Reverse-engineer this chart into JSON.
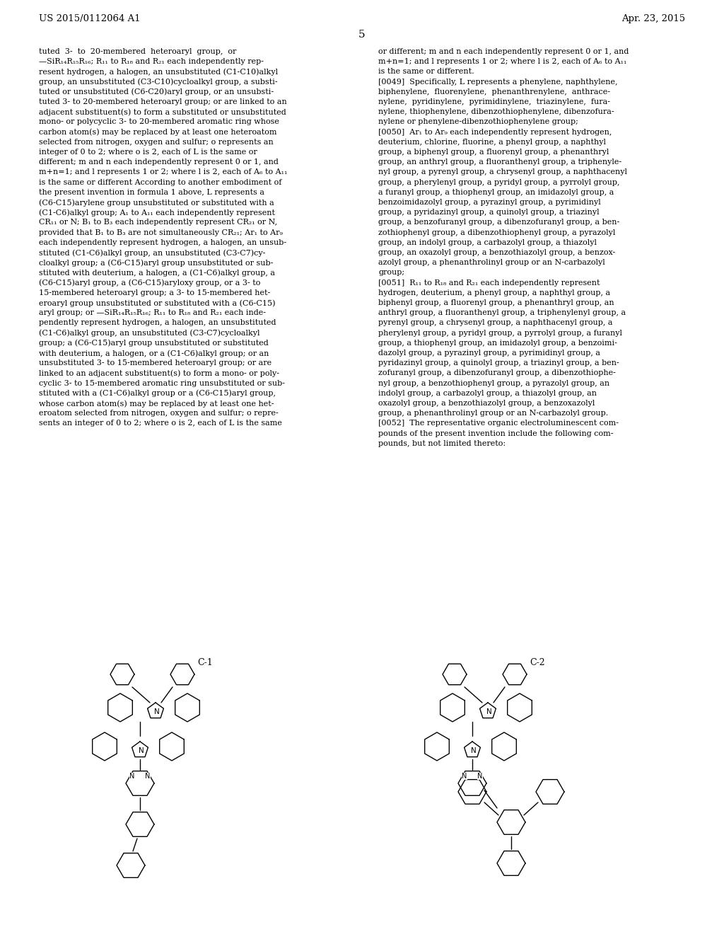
{
  "page_number": "5",
  "header_left": "US 2015/0112064 A1",
  "header_right": "Apr. 23, 2015",
  "background_color": "#ffffff",
  "text_color": "#000000",
  "compound_label_1": "C-1",
  "compound_label_2": "C-2",
  "font_size_body": 8.0,
  "font_size_header": 9.5,
  "font_size_label": 9.0,
  "left_col_lines": [
    "tuted  3-  to  20-membered  heteroaryl  group,  or",
    "—SiR₁₄R₁₅R₁₆; R₁₁ to R₁₈ and R₂₁ each independently rep-",
    "resent hydrogen, a halogen, an unsubstituted (C1-C10)alkyl",
    "group, an unsubstituted (C3-C10)cycloalkyl group, a substi-",
    "tuted or unsubstituted (C6-C20)aryl group, or an unsubsti-",
    "tuted 3- to 20-membered heteroaryl group; or are linked to an",
    "adjacent substituent(s) to form a substituted or unsubstituted",
    "mono- or polycyclic 3- to 20-membered aromatic ring whose",
    "carbon atom(s) may be replaced by at least one heteroatom",
    "selected from nitrogen, oxygen and sulfur; o represents an",
    "integer of 0 to 2; where o is 2, each of L is the same or",
    "different; m and n each independently represent 0 or 1, and",
    "m+n=1; and l represents 1 or 2; where l is 2, each of A₆ to A₁₁",
    "is the same or different According to another embodiment of",
    "the present invention in formula 1 above, L represents a",
    "(C6-C15)arylene group unsubstituted or substituted with a",
    "(C1-C6)alkyl group; A₁ to A₁₁ each independently represent",
    "CR₁₁ or N; B₁ to B₃ each independently represent CR₂₁ or N,",
    "provided that B₁ to B₃ are not simultaneously CR₂₁; Ar₁ to Ar₉",
    "each independently represent hydrogen, a halogen, an unsub-",
    "stituted (C1-C6)alkyl group, an unsubstituted (C3-C7)cy-",
    "cloalkyl group; a (C6-C15)aryl group unsubstituted or sub-",
    "stituted with deuterium, a halogen, a (C1-C6)alkyl group, a",
    "(C6-C15)aryl group, a (C6-C15)aryloxy group, or a 3- to",
    "15-membered heteroaryl group; a 3- to 15-membered het-",
    "eroaryl group unsubstituted or substituted with a (C6-C15)",
    "aryl group; or —SiR₁₄R₁₅R₁₆; R₁₁ to R₁₈ and R₂₁ each inde-",
    "pendently represent hydrogen, a halogen, an unsubstituted",
    "(C1-C6)alkyl group, an unsubstituted (C3-C7)cycloalkyl",
    "group; a (C6-C15)aryl group unsubstituted or substituted",
    "with deuterium, a halogen, or a (C1-C6)alkyl group; or an",
    "unsubstituted 3- to 15-membered heteroaryl group; or are",
    "linked to an adjacent substituent(s) to form a mono- or poly-",
    "cyclic 3- to 15-membered aromatic ring unsubstituted or sub-",
    "stituted with a (C1-C6)alkyl group or a (C6-C15)aryl group,",
    "whose carbon atom(s) may be replaced by at least one het-",
    "eroatom selected from nitrogen, oxygen and sulfur; o repre-",
    "sents an integer of 0 to 2; where o is 2, each of L is the same"
  ],
  "right_col_lines": [
    "or different; m and n each independently represent 0 or 1, and",
    "m+n=1; and l represents 1 or 2; where l is 2, each of A₆ to A₁₁",
    "is the same or different.",
    "[0049]  Specifically, L represents a phenylene, naphthylene,",
    "biphenylene,  fluorenylene,  phenanthrenylene,  anthrace-",
    "nylene,  pyridinylene,  pyrimidinylene,  triazinylene,  fura-",
    "nylene, thiophenylene, dibenzothiophenylene, dibenzofura-",
    "nylene or phenylene-dibenzothiophenylene group;",
    "[0050]  Ar₁ to Ar₉ each independently represent hydrogen,",
    "deuterium, chlorine, fluorine, a phenyl group, a naphthyl",
    "group, a biphenyl group, a fluorenyl group, a phenanthryl",
    "group, an anthryl group, a fluoranthenyl group, a triphenyle-",
    "nyl group, a pyrenyl group, a chrysenyl group, a naphthacenyl",
    "group, a pherylenyl group, a pyridyl group, a pyrrolyl group,",
    "a furanyl group, a thiophenyl group, an imidazolyl group, a",
    "benzoimidazolyl group, a pyrazinyl group, a pyrimidinyl",
    "group, a pyridazinyl group, a quinolyl group, a triazinyl",
    "group, a benzofuranyl group, a dibenzofuranyl group, a ben-",
    "zothiophenyl group, a dibenzothiophenyl group, a pyrazolyl",
    "group, an indolyl group, a carbazolyl group, a thiazolyl",
    "group, an oxazolyl group, a benzothiazolyl group, a benzox-",
    "azolyl group, a phenanthrolinyl group or an N-carbazolyl",
    "group;",
    "[0051]  R₁₁ to R₁₈ and R₂₁ each independently represent",
    "hydrogen, deuterium, a phenyl group, a naphthyl group, a",
    "biphenyl group, a fluorenyl group, a phenanthryl group, an",
    "anthryl group, a fluoranthenyl group, a triphenylenyl group, a",
    "pyrenyl group, a chrysenyl group, a naphthacenyl group, a",
    "pherylenyl group, a pyridyl group, a pyrrolyl group, a furanyl",
    "group, a thiophenyl group, an imidazolyl group, a benzoimi-",
    "dazolyl group, a pyrazinyl group, a pyrimidinyl group, a",
    "pyridazinyl group, a quinolyl group, a triazinyl group, a ben-",
    "zofuranyl group, a dibenzofuranyl group, a dibenzothiophe-",
    "nyl group, a benzothiophenyl group, a pyrazolyl group, an",
    "indolyl group, a carbazolyl group, a thiazolyl group, an",
    "oxazolyl group, a benzothiazolyl group, a benzoxazolyl",
    "group, a phenanthrolinyl group or an N-carbazolyl group.",
    "[0052]  The representative organic electroluminescent com-",
    "pounds of the present invention include the following com-",
    "pounds, but not limited thereto:"
  ]
}
